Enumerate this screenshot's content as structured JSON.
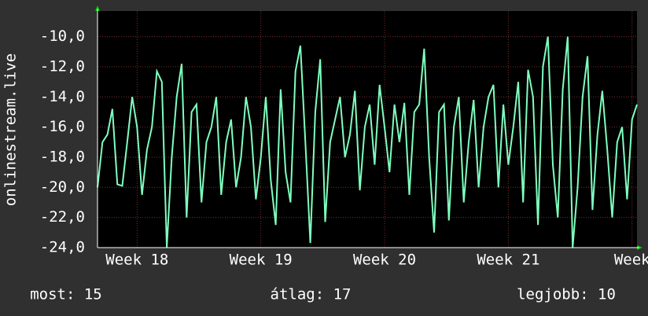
{
  "chart_data": {
    "type": "line",
    "y_label": "onlinestream.live",
    "x": [
      17.68,
      17.72,
      17.76,
      17.8,
      17.84,
      17.88,
      17.92,
      17.96,
      18,
      18.04,
      18.08,
      18.12,
      18.16,
      18.2,
      18.24,
      18.28,
      18.32,
      18.36,
      18.4,
      18.44,
      18.48,
      18.52,
      18.56,
      18.6,
      18.64,
      18.68,
      18.72,
      18.76,
      18.8,
      18.84,
      18.88,
      18.92,
      18.96,
      19,
      19.04,
      19.08,
      19.12,
      19.16,
      19.2,
      19.24,
      19.28,
      19.32,
      19.36,
      19.4,
      19.44,
      19.48,
      19.52,
      19.56,
      19.6,
      19.64,
      19.68,
      19.72,
      19.76,
      19.8,
      19.84,
      19.88,
      19.92,
      19.96,
      20,
      20.04,
      20.08,
      20.12,
      20.16,
      20.2,
      20.24,
      20.28,
      20.32,
      20.36,
      20.4,
      20.44,
      20.48,
      20.52,
      20.56,
      20.6,
      20.64,
      20.68,
      20.72,
      20.76,
      20.8,
      20.84,
      20.88,
      20.92,
      20.96,
      21,
      21.04,
      21.08,
      21.12,
      21.16,
      21.2,
      21.24,
      21.28,
      21.32,
      21.36,
      21.4,
      21.44,
      21.48,
      21.52,
      21.56,
      21.6,
      21.64,
      21.68,
      21.72,
      21.76,
      21.8,
      21.84,
      21.88,
      21.92,
      21.96,
      22,
      22.04
    ],
    "series": [
      {
        "color": "#7fffbf",
        "values": [
          -20,
          -17,
          -16.5,
          -14.8,
          -19.8,
          -19.9,
          -17,
          -14,
          -16,
          -20.5,
          -17.5,
          -16,
          -12.3,
          -13,
          -24,
          -18,
          -14,
          -11.8,
          -22,
          -15,
          -14.5,
          -21,
          -17,
          -16,
          -14,
          -20.5,
          -17,
          -15.5,
          -20,
          -18,
          -14,
          -16,
          -20.8,
          -18,
          -14,
          -19.5,
          -22.5,
          -13.5,
          -19,
          -21,
          -12.3,
          -10.6,
          -17,
          -23.7,
          -15,
          -11.5,
          -22.3,
          -17,
          -15.5,
          -14,
          -18,
          -16.5,
          -13.6,
          -20.2,
          -16,
          -14.5,
          -18.5,
          -13.2,
          -16,
          -19,
          -14.5,
          -17,
          -14.4,
          -20.5,
          -15,
          -14.5,
          -10.8,
          -18,
          -23,
          -15,
          -14.5,
          -22.2,
          -16,
          -14,
          -21,
          -17,
          -14.2,
          -20,
          -16,
          -14,
          -13.2,
          -20,
          -14.5,
          -18.5,
          -16,
          -13,
          -21,
          -12.2,
          -14,
          -22.5,
          -12,
          -10,
          -18.5,
          -22,
          -13.5,
          -10,
          -24,
          -20,
          -14,
          -11.3,
          -21.5,
          -16.5,
          -13.6,
          -17.5,
          -22,
          -17,
          -16,
          -20.8,
          -15.5,
          -14.5
        ]
      }
    ],
    "xlim": [
      17.68,
      22.04
    ],
    "xticks": [
      {
        "value": 18,
        "label": "Week 18"
      },
      {
        "value": 19,
        "label": "Week 19"
      },
      {
        "value": 20,
        "label": "Week 20"
      },
      {
        "value": 21,
        "label": "Week 21"
      },
      {
        "value": 22,
        "label": "Week"
      }
    ],
    "ylim": [
      -24,
      -8.3
    ],
    "yticks": [
      {
        "value": -24,
        "label": "-24,0"
      },
      {
        "value": -22,
        "label": "-22,0"
      },
      {
        "value": -20,
        "label": "-20,0"
      },
      {
        "value": -18,
        "label": "-18,0"
      },
      {
        "value": -16,
        "label": "-16,0"
      },
      {
        "value": -14,
        "label": "-14,0"
      },
      {
        "value": -12,
        "label": "-12,0"
      },
      {
        "value": -10,
        "label": "-10,0"
      }
    ],
    "grid": true,
    "footer": [
      "most: 15",
      "átlag: 17",
      "legjobb: 10"
    ]
  }
}
